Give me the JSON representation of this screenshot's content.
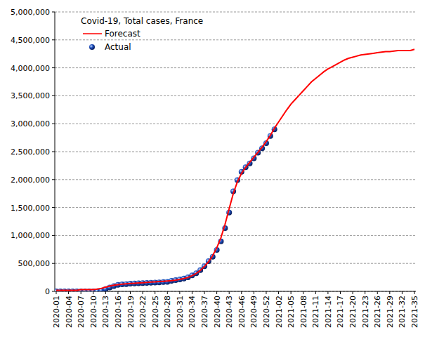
{
  "chart_data": {
    "type": "line",
    "title": "Covid-19, Total cases, France",
    "categories": [
      "2020-01",
      null,
      null,
      "2020-04",
      null,
      null,
      "2020-07",
      null,
      null,
      "2020-10",
      null,
      null,
      "2020-13",
      null,
      null,
      "2020-16",
      null,
      null,
      "2020-19",
      null,
      null,
      "2020-22",
      null,
      null,
      "2020-25",
      null,
      null,
      "2020-28",
      null,
      null,
      "2020-31",
      null,
      null,
      "2020-34",
      null,
      null,
      "2020-37",
      null,
      null,
      "2020-40",
      null,
      null,
      "2020-43",
      null,
      null,
      "2020-46",
      null,
      null,
      "2020-49",
      null,
      null,
      "2020-52",
      null,
      null,
      "2021-02",
      null,
      null,
      "2021-05",
      null,
      null,
      "2021-08",
      null,
      null,
      "2021-11",
      null,
      null,
      "2021-14",
      null,
      null,
      "2021-17",
      null,
      null,
      "2021-20",
      null,
      null,
      "2021-23",
      null,
      null,
      "2021-26",
      null,
      null,
      "2021-29",
      null,
      null,
      "2021-32",
      null,
      null,
      "2021-35"
    ],
    "series": [
      {
        "name": "Forecast",
        "color": "#ff0000",
        "type": "line",
        "marker": "none",
        "values": [
          20000,
          20000,
          20000,
          20000,
          20000,
          20000,
          30000,
          30000,
          30000,
          30000,
          40000,
          55000,
          75000,
          95000,
          110000,
          120000,
          128000,
          134000,
          140000,
          145000,
          150000,
          155000,
          160000,
          165000,
          170000,
          175000,
          180000,
          186000,
          193000,
          202000,
          214000,
          230000,
          250000,
          280000,
          320000,
          375000,
          445000,
          530000,
          640000,
          780000,
          960000,
          1200000,
          1480000,
          1750000,
          1960000,
          2110000,
          2220000,
          2310000,
          2400000,
          2490000,
          2580000,
          2680000,
          2790000,
          2920000,
          3030000,
          3140000,
          3250000,
          3350000,
          3430000,
          3510000,
          3590000,
          3670000,
          3750000,
          3810000,
          3870000,
          3930000,
          3980000,
          4020000,
          4060000,
          4100000,
          4140000,
          4170000,
          4190000,
          4210000,
          4230000,
          4240000,
          4250000,
          4260000,
          4270000,
          4280000,
          4290000,
          4290000,
          4300000,
          4310000,
          4310000,
          4310000,
          4310000,
          4330000
        ]
      },
      {
        "name": "Actual",
        "color": "#1f4fc0",
        "type": "scatter",
        "marker": "circle",
        "values": [
          0,
          0,
          0,
          0,
          0,
          0,
          0,
          0,
          100,
          1200,
          4500,
          14000,
          40000,
          70000,
          95000,
          115000,
          125000,
          130000,
          137000,
          141000,
          144000,
          148000,
          152000,
          155000,
          158000,
          161000,
          165000,
          170000,
          190000,
          200000,
          212000,
          228000,
          252000,
          285000,
          325000,
          380000,
          450000,
          540000,
          620000,
          740000,
          895000,
          1130000,
          1410000,
          1790000,
          1990000,
          2140000,
          2220000,
          2290000,
          2380000,
          2480000,
          2560000,
          2650000,
          2780000,
          2900000,
          null,
          null,
          null,
          null,
          null,
          null,
          null,
          null,
          null,
          null,
          null,
          null,
          null,
          null,
          null,
          null,
          null,
          null,
          null,
          null,
          null,
          null,
          null,
          null,
          null,
          null,
          null,
          null,
          null,
          null,
          null,
          null,
          null,
          null
        ]
      }
    ],
    "ylim": [
      0,
      5000000
    ],
    "yticks": [
      0,
      {
        "value": 500000,
        "label": "500,000"
      },
      {
        "value": 1000000,
        "label": "1,000,000"
      },
      {
        "value": 1500000,
        "label": "1,500,000"
      },
      {
        "value": 2000000,
        "label": "2,000,000"
      },
      {
        "value": 2500000,
        "label": "2,500,000"
      },
      {
        "value": 3000000,
        "label": "3,000,000"
      },
      {
        "value": 3500000,
        "label": "3,500,000"
      },
      {
        "value": 4000000,
        "label": "4,000,000"
      },
      {
        "value": 4500000,
        "label": "4,500,000"
      },
      {
        "value": 5000000,
        "label": "5,000,000"
      }
    ],
    "grid": true,
    "legend": "top-left"
  }
}
